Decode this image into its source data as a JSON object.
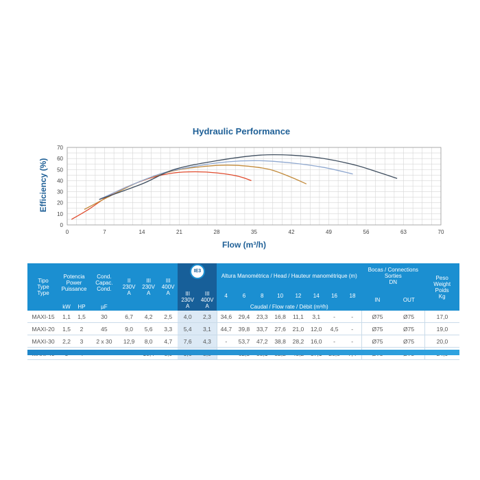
{
  "chart_data": {
    "type": "line",
    "title": "Hydraulic Performance",
    "xlabel": "Flow (m³/h)",
    "ylabel": "Efficiency (%)",
    "xlim": [
      0,
      70
    ],
    "ylim": [
      0,
      70
    ],
    "x_ticks": [
      0,
      7,
      14,
      21,
      28,
      35,
      42,
      49,
      56,
      63,
      70
    ],
    "y_ticks": [
      0,
      10,
      20,
      30,
      40,
      50,
      60,
      70
    ],
    "grid": true,
    "series": [
      {
        "color": "#e04a2c",
        "points": [
          [
            0.8,
            5
          ],
          [
            4,
            14
          ],
          [
            8,
            27
          ],
          [
            12,
            36
          ],
          [
            16,
            43
          ],
          [
            20,
            47
          ],
          [
            24,
            48
          ],
          [
            28,
            47
          ],
          [
            32,
            44
          ],
          [
            34.5,
            40
          ]
        ]
      },
      {
        "color": "#c28a3a",
        "points": [
          [
            3.2,
            14
          ],
          [
            8,
            26
          ],
          [
            14,
            40
          ],
          [
            20,
            49
          ],
          [
            26,
            53
          ],
          [
            30,
            54
          ],
          [
            34,
            53
          ],
          [
            38,
            50
          ],
          [
            42,
            43
          ],
          [
            44.8,
            37
          ]
        ]
      },
      {
        "color": "#8fa8d0",
        "points": [
          [
            6,
            23
          ],
          [
            12,
            36
          ],
          [
            18,
            47
          ],
          [
            24,
            53
          ],
          [
            30,
            57
          ],
          [
            36,
            58
          ],
          [
            42,
            56
          ],
          [
            48,
            52
          ],
          [
            53.5,
            46
          ]
        ]
      },
      {
        "color": "#3e4d5e",
        "points": [
          [
            6,
            23
          ],
          [
            14,
            37
          ],
          [
            20,
            50
          ],
          [
            28,
            58
          ],
          [
            36,
            63
          ],
          [
            42,
            63
          ],
          [
            48,
            60
          ],
          [
            54,
            54
          ],
          [
            58,
            48
          ],
          [
            61.8,
            42
          ]
        ]
      }
    ]
  },
  "table": {
    "ie3_badge": "IE3",
    "headers": {
      "tipo": "Tipo\nType\nType",
      "potencia": "Potencia\nPower\nPuissance",
      "kw": "kW",
      "hp": "HP",
      "cond": "Cond.\nCapac.\nCond.",
      "uf": "µF",
      "i1": "II\n230V\nA",
      "i2": "III\n230V\nA",
      "i3": "III\n400V\nA",
      "ie3a": "III\n230V\nA",
      "ie3b": "III\n400V\nA",
      "altura": "Altura Manométrica / Head / Hauteur manométrique (m)",
      "heads": [
        "4",
        "6",
        "8",
        "10",
        "12",
        "14",
        "16",
        "18"
      ],
      "caudal": "Caudal / Flow rate / Débit (m³/h)",
      "bocas": "Bocas / Connections\nSorties\nDN",
      "in": "IN",
      "out": "OUT",
      "peso": "Peso\nWeight\nPoids\nKg"
    },
    "rows": [
      {
        "model": "MAXI-15",
        "kw": "1,1",
        "hp": "1,5",
        "uf": "30",
        "i1": "6,7",
        "i2": "4,2",
        "i3": "2,5",
        "ie3a": "4,0",
        "ie3b": "2,3",
        "flows": [
          "34,6",
          "29,4",
          "23,3",
          "16,8",
          "11,1",
          "3,1",
          "-",
          "-"
        ],
        "in": "Ø75",
        "out": "Ø75",
        "kg": "17,0"
      },
      {
        "model": "MAXI-20",
        "kw": "1,5",
        "hp": "2",
        "uf": "45",
        "i1": "9,0",
        "i2": "5,6",
        "i3": "3,3",
        "ie3a": "5,4",
        "ie3b": "3,1",
        "flows": [
          "44,7",
          "39,8",
          "33,7",
          "27,6",
          "21,0",
          "12,0",
          "4,5",
          "-"
        ],
        "in": "Ø75",
        "out": "Ø75",
        "kg": "19,0"
      },
      {
        "model": "MAXI-30",
        "kw": "2,2",
        "hp": "3",
        "uf": "2 x 30",
        "i1": "12,9",
        "i2": "8,0",
        "i3": "4,7",
        "ie3a": "7,6",
        "ie3b": "4,3",
        "flows": [
          "-",
          "53,7",
          "47,2",
          "38,8",
          "28,2",
          "16,0",
          "-",
          "-"
        ],
        "in": "Ø75",
        "out": "Ø75",
        "kg": "20,0"
      },
      {
        "model": "MAXI-40",
        "kw": "3",
        "hp": "4",
        "uf": "-",
        "i1": "-",
        "i2": "10,4",
        "i3": "6,0",
        "ie3a": "9,6",
        "ie3b": "5,5",
        "flows": [
          "-",
          "62,3",
          "58,1",
          "52,2",
          "45,2",
          "37,1",
          "26,5",
          "7,4"
        ],
        "in": "Ø75",
        "out": "Ø75",
        "kg": "24,0"
      }
    ]
  }
}
